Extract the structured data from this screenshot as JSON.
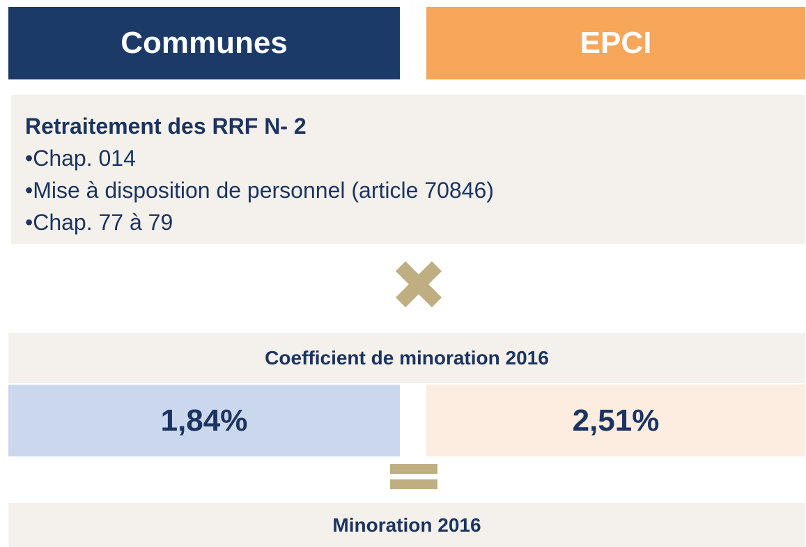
{
  "header": {
    "left": "Communes",
    "right": "EPCI"
  },
  "box": {
    "title": "Retraitement des RRF N- 2",
    "items": [
      "•Chap. 014",
      "•Mise à disposition de personnel (article 70846)",
      "•Chap. 77 à 79"
    ]
  },
  "coefficient": {
    "label": "Coefficient de minoration 2016",
    "left": "1,84%",
    "right": "2,51%"
  },
  "result": {
    "label": "Minoration 2016"
  }
}
